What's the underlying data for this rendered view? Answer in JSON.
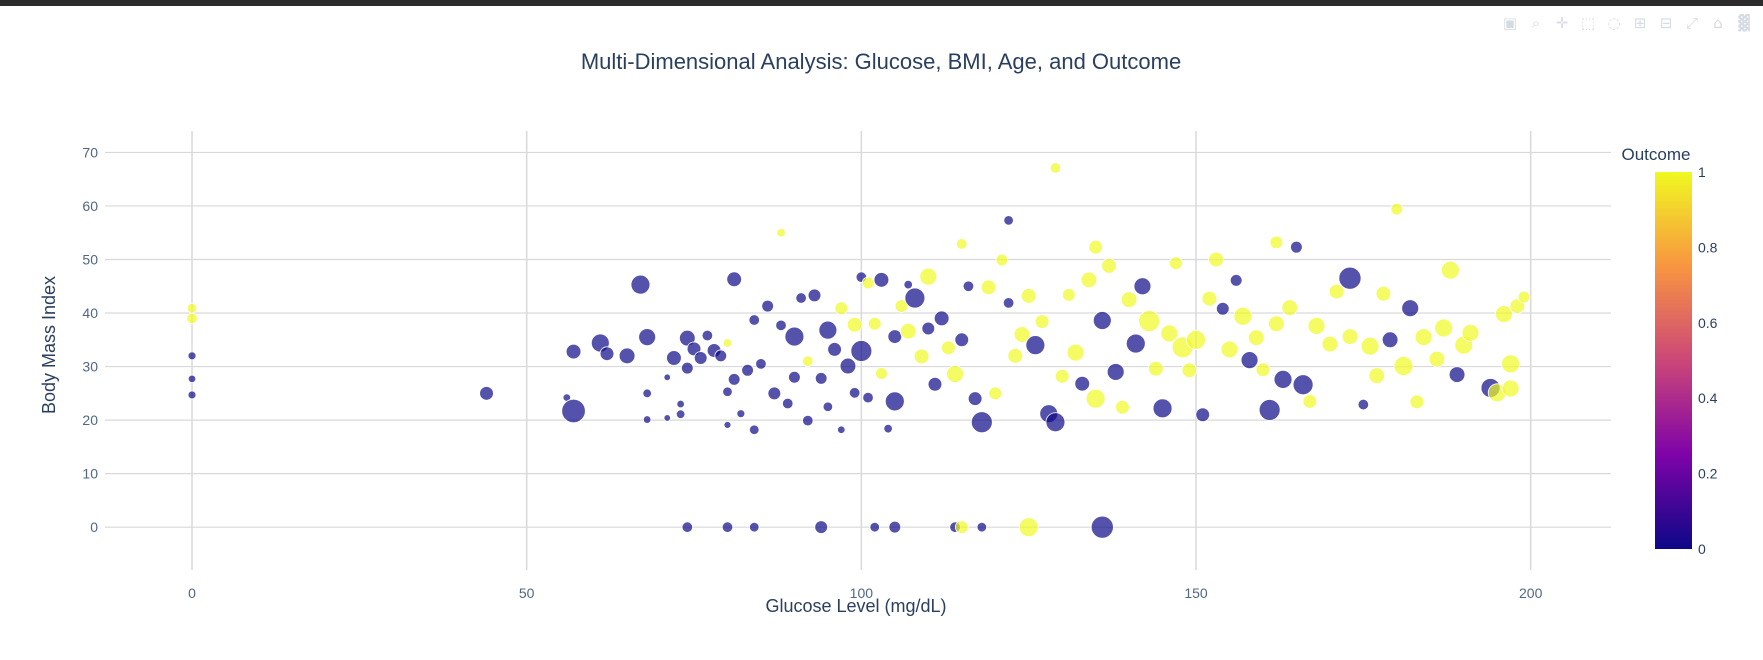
{
  "modebar": {
    "icons": [
      "camera-icon",
      "zoom-icon",
      "pan-icon",
      "box-select-icon",
      "lasso-icon",
      "zoom-in-icon",
      "zoom-out-icon",
      "autoscale-icon",
      "reset-axes-icon",
      "plotly-logo-icon"
    ]
  },
  "chart_data": {
    "type": "scatter",
    "title": "Multi-Dimensional Analysis: Glucose, BMI, Age, and Outcome",
    "xlabel": "Glucose Level (mg/dL)",
    "ylabel": "Body Mass Index",
    "xlim": [
      -13,
      212
    ],
    "ylim": [
      -8,
      74
    ],
    "xticks": [
      0,
      50,
      100,
      150,
      200
    ],
    "yticks": [
      0,
      10,
      20,
      30,
      40,
      50,
      60,
      70
    ],
    "grid": true,
    "colorbar": {
      "title": "Outcome",
      "min": 0,
      "max": 1,
      "ticks": [
        0,
        0.2,
        0.4,
        0.6,
        0.8,
        1
      ]
    },
    "colors": {
      "outcome_0": "#0d0887",
      "outcome_1": "#f0f921",
      "mid_low": "#7e03a8",
      "mid": "#cc4778",
      "mid_high": "#f89540"
    },
    "marker_size_encodes": "Age",
    "points": [
      [
        0,
        40.9,
        1,
        28
      ],
      [
        0,
        39.0,
        1,
        30
      ],
      [
        0,
        32.0,
        0,
        25
      ],
      [
        0,
        27.7,
        0,
        24
      ],
      [
        0,
        24.7,
        0,
        25
      ],
      [
        44,
        25.0,
        0,
        36
      ],
      [
        56,
        24.2,
        0,
        24
      ],
      [
        57,
        21.7,
        0,
        55
      ],
      [
        57,
        32.8,
        0,
        38
      ],
      [
        61,
        34.4,
        0,
        44
      ],
      [
        62,
        32.4,
        0,
        36
      ],
      [
        65,
        32.0,
        0,
        40
      ],
      [
        67,
        45.3,
        0,
        46
      ],
      [
        68,
        35.5,
        0,
        42
      ],
      [
        68,
        25.0,
        0,
        26
      ],
      [
        68,
        20.1,
        0,
        24
      ],
      [
        71,
        20.4,
        0,
        22
      ],
      [
        71,
        28.0,
        0,
        22
      ],
      [
        72,
        31.6,
        0,
        38
      ],
      [
        73,
        23.0,
        0,
        24
      ],
      [
        73,
        21.1,
        0,
        26
      ],
      [
        74,
        35.3,
        0,
        40
      ],
      [
        74,
        29.7,
        0,
        32
      ],
      [
        75,
        33.3,
        0,
        36
      ],
      [
        76,
        31.6,
        0,
        34
      ],
      [
        77,
        35.8,
        0,
        30
      ],
      [
        78,
        33.0,
        0,
        36
      ],
      [
        79,
        32.0,
        0,
        32
      ],
      [
        80,
        25.3,
        0,
        28
      ],
      [
        80,
        19.1,
        0,
        23
      ],
      [
        80,
        34.4,
        1,
        26
      ],
      [
        81,
        46.3,
        0,
        38
      ],
      [
        81,
        27.6,
        0,
        32
      ],
      [
        82,
        21.2,
        0,
        25
      ],
      [
        83,
        29.3,
        0,
        32
      ],
      [
        84,
        18.2,
        0,
        28
      ],
      [
        84,
        38.7,
        0,
        30
      ],
      [
        85,
        30.5,
        0,
        30
      ],
      [
        86,
        41.3,
        0,
        32
      ],
      [
        87,
        25.0,
        0,
        34
      ],
      [
        88,
        55.0,
        1,
        26
      ],
      [
        88,
        37.7,
        0,
        30
      ],
      [
        89,
        23.1,
        0,
        30
      ],
      [
        90,
        35.6,
        0,
        46
      ],
      [
        90,
        28.0,
        0,
        32
      ],
      [
        91,
        42.8,
        0,
        30
      ],
      [
        92,
        19.9,
        0,
        30
      ],
      [
        92,
        31.0,
        1,
        30
      ],
      [
        93,
        43.3,
        0,
        34
      ],
      [
        94,
        27.8,
        0,
        32
      ],
      [
        95,
        36.8,
        0,
        44
      ],
      [
        95,
        22.5,
        0,
        28
      ],
      [
        96,
        33.2,
        0,
        36
      ],
      [
        97,
        40.9,
        1,
        34
      ],
      [
        97,
        18.2,
        0,
        24
      ],
      [
        98,
        30.1,
        0,
        40
      ],
      [
        99,
        25.1,
        0,
        30
      ],
      [
        99,
        37.8,
        1,
        38
      ],
      [
        100,
        46.7,
        0,
        30
      ],
      [
        100,
        32.9,
        0,
        50
      ],
      [
        101,
        45.6,
        1,
        32
      ],
      [
        101,
        24.2,
        0,
        30
      ],
      [
        102,
        38.0,
        1,
        34
      ],
      [
        103,
        46.2,
        0,
        38
      ],
      [
        103,
        28.7,
        1,
        32
      ],
      [
        104,
        18.4,
        0,
        26
      ],
      [
        105,
        35.6,
        0,
        36
      ],
      [
        105,
        23.5,
        0,
        46
      ],
      [
        106,
        41.3,
        1,
        34
      ],
      [
        107,
        36.6,
        1,
        40
      ],
      [
        107,
        45.3,
        0,
        26
      ],
      [
        108,
        42.8,
        0,
        48
      ],
      [
        109,
        31.9,
        1,
        38
      ],
      [
        110,
        37.1,
        0,
        34
      ],
      [
        110,
        46.8,
        1,
        42
      ],
      [
        111,
        26.7,
        0,
        36
      ],
      [
        112,
        39.0,
        0,
        38
      ],
      [
        113,
        33.5,
        1,
        36
      ],
      [
        114,
        28.6,
        1,
        42
      ],
      [
        115,
        52.9,
        1,
        30
      ],
      [
        115,
        35.0,
        0,
        36
      ],
      [
        116,
        45.0,
        0,
        30
      ],
      [
        117,
        24.0,
        0,
        36
      ],
      [
        118,
        19.6,
        0,
        50
      ],
      [
        119,
        44.8,
        1,
        38
      ],
      [
        120,
        25.0,
        1,
        34
      ],
      [
        121,
        49.9,
        1,
        32
      ],
      [
        122,
        57.3,
        0,
        28
      ],
      [
        122,
        41.9,
        0,
        30
      ],
      [
        123,
        32.0,
        1,
        38
      ],
      [
        124,
        36.0,
        1,
        40
      ],
      [
        125,
        43.2,
        1,
        38
      ],
      [
        126,
        34.0,
        0,
        46
      ],
      [
        127,
        38.4,
        1,
        36
      ],
      [
        128,
        21.2,
        0,
        44
      ],
      [
        129,
        67.1,
        1,
        30
      ],
      [
        129,
        19.6,
        0,
        46
      ],
      [
        130,
        28.2,
        1,
        36
      ],
      [
        131,
        43.4,
        1,
        34
      ],
      [
        132,
        32.6,
        1,
        42
      ],
      [
        133,
        26.8,
        0,
        38
      ],
      [
        134,
        46.2,
        1,
        40
      ],
      [
        135,
        24.0,
        1,
        46
      ],
      [
        135,
        52.3,
        1,
        36
      ],
      [
        136,
        38.6,
        0,
        44
      ],
      [
        137,
        48.8,
        1,
        38
      ],
      [
        138,
        29.0,
        0,
        42
      ],
      [
        139,
        22.4,
        1,
        36
      ],
      [
        140,
        42.5,
        1,
        40
      ],
      [
        141,
        34.3,
        0,
        46
      ],
      [
        142,
        45.0,
        0,
        42
      ],
      [
        143,
        38.5,
        1,
        50
      ],
      [
        144,
        29.6,
        1,
        38
      ],
      [
        145,
        22.2,
        0,
        46
      ],
      [
        146,
        36.2,
        1,
        42
      ],
      [
        147,
        49.3,
        1,
        34
      ],
      [
        148,
        33.6,
        1,
        50
      ],
      [
        149,
        29.3,
        1,
        38
      ],
      [
        150,
        35.0,
        1,
        46
      ],
      [
        151,
        21.0,
        0,
        36
      ],
      [
        152,
        42.7,
        1,
        38
      ],
      [
        153,
        50.0,
        1,
        38
      ],
      [
        154,
        40.8,
        0,
        34
      ],
      [
        155,
        33.2,
        1,
        42
      ],
      [
        156,
        46.1,
        0,
        32
      ],
      [
        157,
        39.4,
        1,
        44
      ],
      [
        158,
        31.2,
        0,
        42
      ],
      [
        159,
        35.4,
        1,
        40
      ],
      [
        160,
        29.4,
        1,
        36
      ],
      [
        161,
        21.9,
        0,
        50
      ],
      [
        162,
        53.2,
        1,
        34
      ],
      [
        162,
        38.0,
        1,
        40
      ],
      [
        163,
        27.6,
        0,
        44
      ],
      [
        164,
        41.0,
        1,
        40
      ],
      [
        165,
        52.3,
        0,
        32
      ],
      [
        166,
        26.6,
        0,
        48
      ],
      [
        167,
        23.5,
        1,
        36
      ],
      [
        168,
        37.6,
        1,
        42
      ],
      [
        170,
        34.2,
        1,
        40
      ],
      [
        171,
        44.0,
        1,
        38
      ],
      [
        173,
        46.5,
        0,
        52
      ],
      [
        173,
        35.6,
        1,
        40
      ],
      [
        175,
        22.9,
        0,
        30
      ],
      [
        176,
        33.8,
        1,
        44
      ],
      [
        177,
        28.3,
        1,
        40
      ],
      [
        178,
        43.6,
        1,
        38
      ],
      [
        179,
        35.0,
        0,
        40
      ],
      [
        180,
        59.4,
        1,
        32
      ],
      [
        181,
        30.1,
        1,
        46
      ],
      [
        182,
        40.9,
        0,
        42
      ],
      [
        183,
        23.4,
        1,
        36
      ],
      [
        184,
        35.5,
        1,
        42
      ],
      [
        186,
        31.4,
        1,
        40
      ],
      [
        187,
        37.2,
        1,
        44
      ],
      [
        188,
        48.0,
        1,
        44
      ],
      [
        189,
        28.5,
        0,
        40
      ],
      [
        190,
        34.0,
        1,
        44
      ],
      [
        191,
        36.3,
        1,
        42
      ],
      [
        194,
        26.0,
        0,
        46
      ],
      [
        195,
        25.1,
        1,
        44
      ],
      [
        196,
        39.8,
        1,
        42
      ],
      [
        197,
        30.5,
        1,
        44
      ],
      [
        197,
        25.9,
        1,
        42
      ],
      [
        198,
        41.3,
        1,
        38
      ],
      [
        199,
        43.0,
        1,
        32
      ],
      [
        74,
        0,
        0,
        30
      ],
      [
        80,
        0,
        0,
        30
      ],
      [
        84,
        0,
        0,
        28
      ],
      [
        94,
        0,
        0,
        34
      ],
      [
        102,
        0,
        0,
        28
      ],
      [
        105,
        0,
        0,
        32
      ],
      [
        114,
        0,
        0,
        30
      ],
      [
        115,
        0,
        1,
        34
      ],
      [
        118,
        0,
        0,
        28
      ],
      [
        125,
        0,
        1,
        46
      ],
      [
        136,
        0,
        0,
        52
      ]
    ]
  }
}
